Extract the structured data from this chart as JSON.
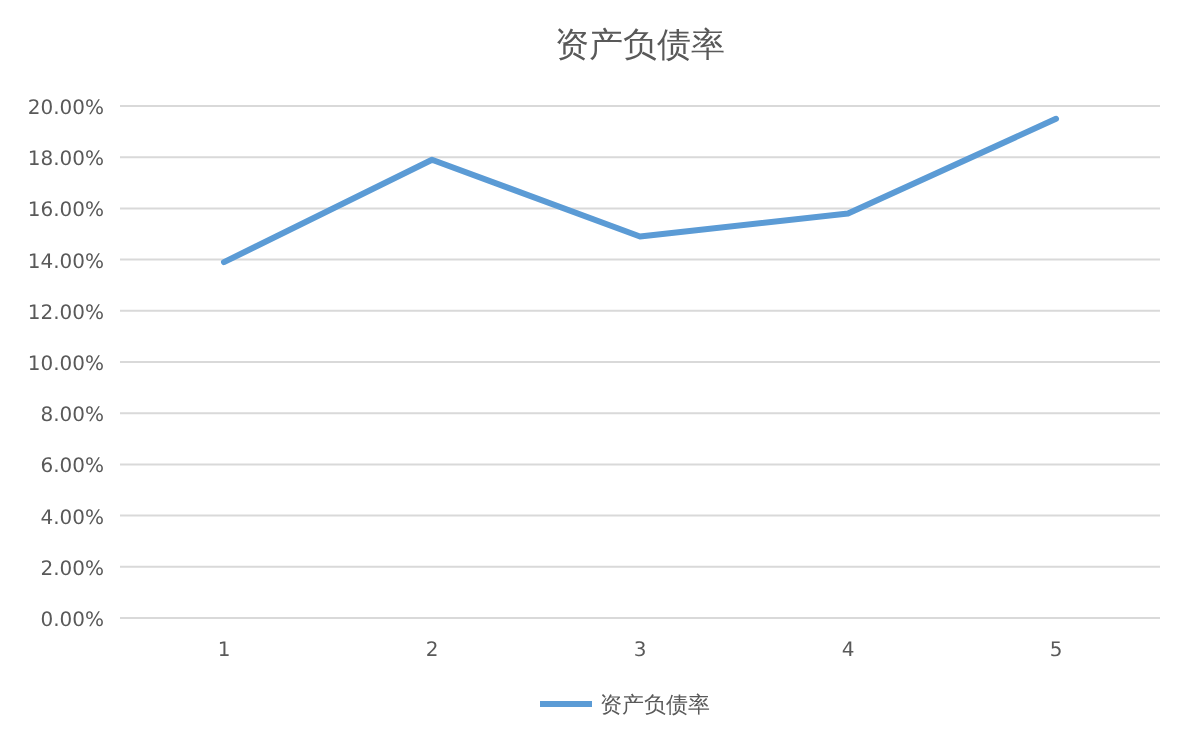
{
  "chart_data": {
    "type": "line",
    "title": "资产负债率",
    "categories": [
      "1",
      "2",
      "3",
      "4",
      "5"
    ],
    "series": [
      {
        "name": "资产负债率",
        "color": "#5b9bd5",
        "values": [
          13.9,
          17.9,
          14.9,
          15.8,
          19.5
        ]
      }
    ],
    "ylim": [
      0,
      20
    ],
    "yticks": [
      {
        "value": 0,
        "label": "0.00%"
      },
      {
        "value": 2,
        "label": "2.00%"
      },
      {
        "value": 4,
        "label": "4.00%"
      },
      {
        "value": 6,
        "label": "6.00%"
      },
      {
        "value": 8,
        "label": "8.00%"
      },
      {
        "value": 10,
        "label": "10.00%"
      },
      {
        "value": 12,
        "label": "12.00%"
      },
      {
        "value": 14,
        "label": "14.00%"
      },
      {
        "value": 16,
        "label": "16.00%"
      },
      {
        "value": 18,
        "label": "18.00%"
      },
      {
        "value": 20,
        "label": "20.00%"
      }
    ],
    "grid": "y",
    "legend": "bottom",
    "marker": "none",
    "line_style": "solid"
  }
}
